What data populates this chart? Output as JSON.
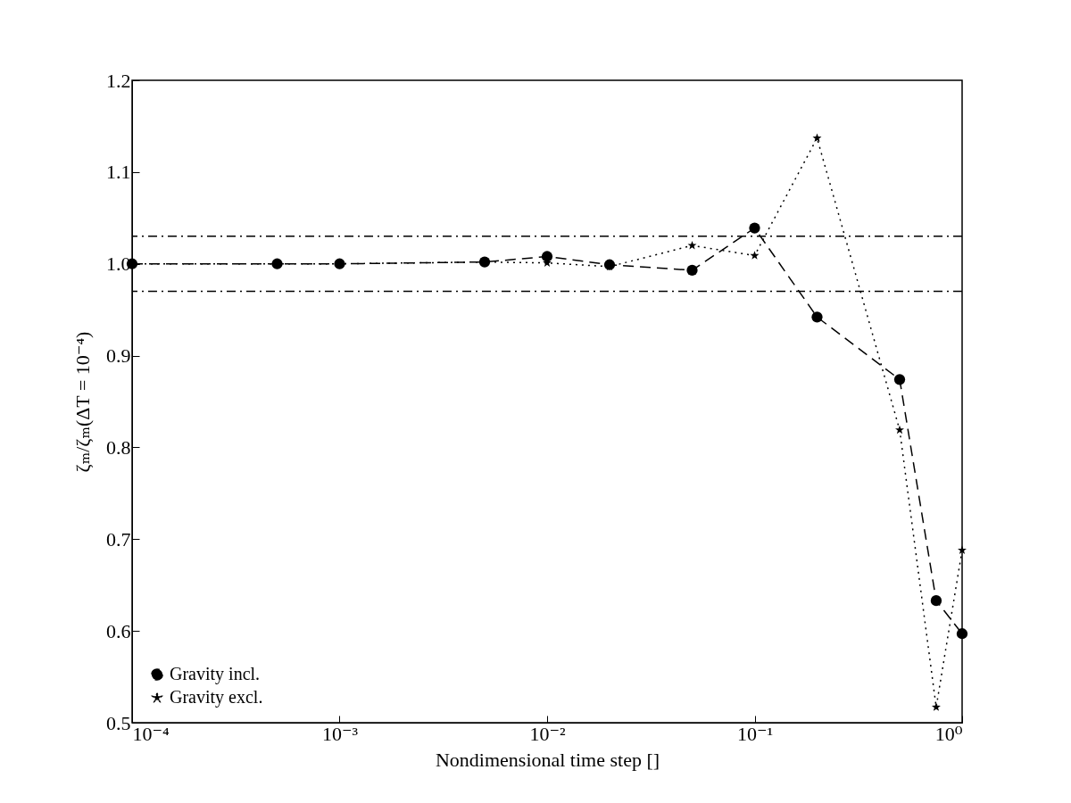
{
  "chart_data": {
    "type": "line",
    "xlabel": "Nondimensional time step []",
    "ylabel": "ζₘ/ζₘ(ΔT = 10⁻⁴)",
    "log": "x",
    "grid": false,
    "legend": "bottom left",
    "xlim": [
      0.0001,
      1
    ],
    "xticks": [
      {
        "value": 0.0001,
        "label": "10⁻⁴"
      },
      {
        "value": 0.001,
        "label": "10⁻³"
      },
      {
        "value": 0.01,
        "label": "10⁻²"
      },
      {
        "value": 0.1,
        "label": "10⁻¹"
      },
      {
        "value": 1,
        "label": "10⁰"
      }
    ],
    "ylim": [
      0.5,
      1.2
    ],
    "yticks": [
      {
        "value": 0.5,
        "label": "0.5"
      },
      {
        "value": 0.6,
        "label": "0.6"
      },
      {
        "value": 0.7,
        "label": "0.7"
      },
      {
        "value": 0.8,
        "label": "0.8"
      },
      {
        "value": 0.9,
        "label": "0.9"
      },
      {
        "value": 1.0,
        "label": "1.0"
      },
      {
        "value": 1.1,
        "label": "1.1"
      },
      {
        "value": 1.2,
        "label": "1.2"
      }
    ],
    "x": [
      0.0001,
      0.0005,
      0.001,
      0.005,
      0.01,
      0.02,
      0.05,
      0.1,
      0.2,
      0.5,
      0.75,
      1
    ],
    "series": [
      {
        "name": "Gravity incl.",
        "color": "#000000",
        "marker": "circle",
        "line_style": "dashed",
        "values": [
          1.0,
          1.0,
          1.0,
          1.002,
          1.008,
          0.999,
          0.993,
          1.039,
          0.942,
          0.874,
          0.633,
          0.597
        ]
      },
      {
        "name": "Gravity excl.",
        "color": "#000000",
        "marker": "star",
        "line_style": "dotted",
        "values": [
          1.0,
          1.0,
          1.0,
          1.002,
          1.001,
          0.997,
          1.02,
          1.009,
          1.137,
          0.819,
          0.517,
          0.688
        ]
      }
    ],
    "ref_lines": [
      {
        "axis": "y",
        "value": 1.03,
        "color": "#000000",
        "line_style": "dashdot"
      },
      {
        "axis": "y",
        "value": 0.97,
        "color": "#000000",
        "line_style": "dashdot"
      }
    ]
  }
}
